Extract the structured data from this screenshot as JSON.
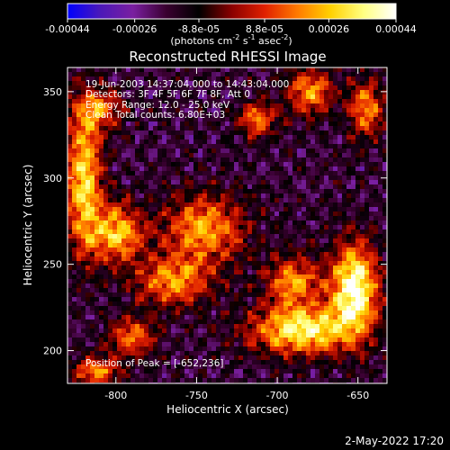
{
  "chart_data": {
    "type": "heatmap",
    "title": "Reconstructed RHESSI Image",
    "xlabel": "Heliocentric X (arcsec)",
    "ylabel": "Heliocentric Y (arcsec)",
    "xlim": [
      -830,
      -632
    ],
    "ylim": [
      181,
      364
    ],
    "x_ticks": [
      "-800",
      "-750",
      "-700",
      "-650"
    ],
    "x_tick_values": [
      -800,
      -750,
      -700,
      -650
    ],
    "y_ticks": [
      "200",
      "250",
      "300",
      "350"
    ],
    "y_tick_values": [
      200,
      250,
      300,
      350
    ],
    "colorbar": {
      "ticks": [
        "-0.00044",
        "-0.00026",
        "-8.8e-05",
        "8.8e-05",
        "0.00026",
        "0.00044"
      ],
      "tick_values": [
        -0.00044,
        -0.00026,
        -8.8e-05,
        8.8e-05,
        0.00026,
        0.00044
      ],
      "range": [
        -0.00044,
        0.00044
      ],
      "units_text": "(photons cm",
      "units_exp1": "-2",
      "units_mid": " s",
      "units_exp2": "-1",
      "units_end": " asec",
      "units_exp3": "-2",
      "units_close": ")",
      "colormap_stops": [
        "#0000ff",
        "#4b18b8",
        "#7a1fa0",
        "#3a0030",
        "#000000",
        "#8a0000",
        "#e02000",
        "#ff7a00",
        "#ffd000",
        "#ffff80",
        "#ffffff"
      ]
    },
    "sources": [
      {
        "x": -652,
        "y": 236,
        "peak": 0.00044,
        "sx": 10,
        "sy": 18
      },
      {
        "x": -685,
        "y": 212,
        "peak": 0.00036,
        "sx": 22,
        "sy": 10
      },
      {
        "x": -820,
        "y": 300,
        "peak": 0.0003,
        "sx": 8,
        "sy": 28
      },
      {
        "x": -800,
        "y": 268,
        "peak": 0.00026,
        "sx": 12,
        "sy": 12
      },
      {
        "x": -745,
        "y": 270,
        "peak": 0.00022,
        "sx": 18,
        "sy": 14
      },
      {
        "x": -765,
        "y": 240,
        "peak": 0.0002,
        "sx": 16,
        "sy": 10
      },
      {
        "x": -690,
        "y": 240,
        "peak": 0.0002,
        "sx": 12,
        "sy": 10
      },
      {
        "x": -712,
        "y": 334,
        "peak": 0.00016,
        "sx": 8,
        "sy": 8
      },
      {
        "x": -680,
        "y": 350,
        "peak": 0.0002,
        "sx": 10,
        "sy": 10
      },
      {
        "x": -645,
        "y": 340,
        "peak": 0.00018,
        "sx": 8,
        "sy": 12
      },
      {
        "x": -810,
        "y": 340,
        "peak": 0.00014,
        "sx": 10,
        "sy": 8
      },
      {
        "x": -790,
        "y": 208,
        "peak": 0.00016,
        "sx": 10,
        "sy": 8
      },
      {
        "x": -812,
        "y": 188,
        "peak": 0.00018,
        "sx": 10,
        "sy": 6
      }
    ],
    "annotations": {
      "time_range": "19-Jun-2003 14:37:04.000 to 14:43:04.000",
      "detectors": "Detectors: 3F 4F 5F 6F 7F 8F, Att 0",
      "energy_range": "Energy Range: 12.0 - 25.0 keV",
      "clean": "Clean     Total counts: 6.80E+03",
      "peak_position": "Position of Peak = [-652,236]"
    },
    "date_stamp": "2-May-2022 17:20"
  }
}
